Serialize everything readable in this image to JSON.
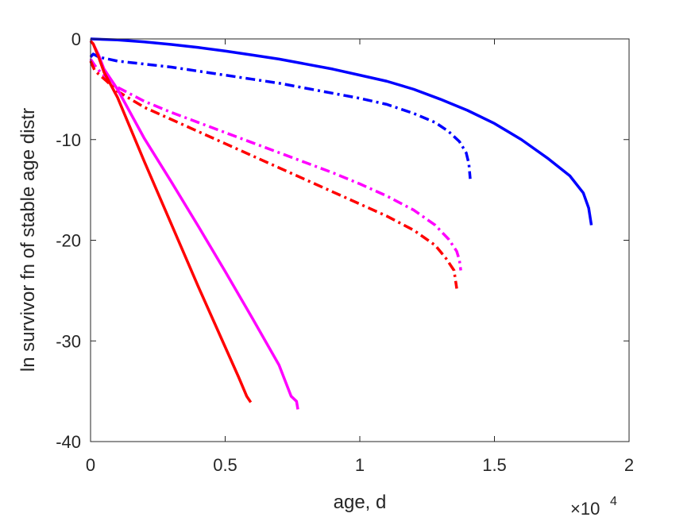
{
  "chart_data": {
    "type": "line",
    "xlabel": "age, d",
    "ylabel": "ln survivor fn of stable age distr",
    "x_exponent_label": "×10",
    "x_exponent_power": "4",
    "xlim": [
      0,
      20000
    ],
    "ylim": [
      -40,
      0
    ],
    "xticks": [
      0,
      5000,
      10000,
      15000,
      20000
    ],
    "xtick_labels": [
      "0",
      "0.5",
      "1",
      "1.5",
      "2"
    ],
    "yticks": [
      0,
      -10,
      -20,
      -30,
      -40
    ],
    "ytick_labels": [
      "0",
      "-10",
      "-20",
      "-30",
      "-40"
    ],
    "grid": false,
    "series": [
      {
        "color": "#0000ff",
        "dash": "solid",
        "x": [
          0,
          1000,
          2000,
          3000,
          4000,
          5000,
          6000,
          7000,
          8000,
          9000,
          10000,
          11000,
          12000,
          13000,
          14000,
          15000,
          16000,
          17000,
          17800,
          18300,
          18500,
          18600
        ],
        "y": [
          0,
          -0.1,
          -0.3,
          -0.55,
          -0.85,
          -1.2,
          -1.6,
          -2.0,
          -2.5,
          -3.0,
          -3.6,
          -4.2,
          -5.0,
          -6.0,
          -7.1,
          -8.4,
          -10.0,
          -11.9,
          -13.6,
          -15.3,
          -16.8,
          -18.5
        ]
      },
      {
        "color": "#0000ff",
        "dash": "dashdot",
        "x": [
          0,
          100,
          300,
          1000,
          2000,
          3000,
          4000,
          5000,
          6000,
          7000,
          8000,
          9000,
          10000,
          11000,
          12000,
          12800,
          13300,
          13700,
          13950,
          14050,
          14100
        ],
        "y": [
          -1.8,
          -1.5,
          -1.8,
          -2.2,
          -2.5,
          -2.8,
          -3.2,
          -3.6,
          -4.0,
          -4.4,
          -4.9,
          -5.4,
          -5.9,
          -6.5,
          -7.4,
          -8.3,
          -9.2,
          -10.2,
          -11.3,
          -12.4,
          -13.9
        ]
      },
      {
        "color": "#ff00ff",
        "dash": "dashdot",
        "x": [
          0,
          150,
          300,
          600,
          1000,
          2000,
          3000,
          4000,
          5000,
          6000,
          7000,
          8000,
          9000,
          10000,
          11000,
          12000,
          12800,
          13300,
          13600,
          13700,
          13750
        ],
        "y": [
          -2.0,
          -2.6,
          -3.1,
          -3.9,
          -4.8,
          -6.2,
          -7.3,
          -8.3,
          -9.3,
          -10.3,
          -11.3,
          -12.3,
          -13.3,
          -14.4,
          -15.6,
          -17.0,
          -18.5,
          -19.9,
          -21.1,
          -22.0,
          -23.0
        ]
      },
      {
        "color": "#ff0000",
        "dash": "dashdot",
        "x": [
          0,
          150,
          300,
          600,
          1000,
          2000,
          3000,
          4000,
          5000,
          6000,
          7000,
          8000,
          9000,
          10000,
          11000,
          12000,
          12800,
          13200,
          13500,
          13600
        ],
        "y": [
          -2.2,
          -3.1,
          -3.5,
          -4.2,
          -5.2,
          -6.8,
          -8.0,
          -9.2,
          -10.4,
          -11.6,
          -12.8,
          -14.0,
          -15.2,
          -16.4,
          -17.6,
          -19.0,
          -20.5,
          -21.8,
          -23.0,
          -24.8
        ]
      },
      {
        "color": "#ff00ff",
        "dash": "solid",
        "x": [
          0,
          100,
          300,
          500,
          1000,
          2000,
          3000,
          4000,
          5000,
          6000,
          7000,
          7450,
          7650,
          7700
        ],
        "y": [
          -0.2,
          -0.5,
          -1.6,
          -3.0,
          -5.0,
          -9.9,
          -14.2,
          -18.6,
          -23.1,
          -27.7,
          -32.4,
          -35.5,
          -36.0,
          -36.8
        ]
      },
      {
        "color": "#ff0000",
        "dash": "solid",
        "x": [
          0,
          100,
          300,
          500,
          1000,
          2000,
          3000,
          4000,
          5000,
          5500,
          5800,
          5950
        ],
        "y": [
          -0.2,
          -0.5,
          -1.8,
          -3.3,
          -5.8,
          -12.2,
          -18.4,
          -24.6,
          -30.6,
          -33.6,
          -35.5,
          -36.1
        ]
      }
    ]
  }
}
